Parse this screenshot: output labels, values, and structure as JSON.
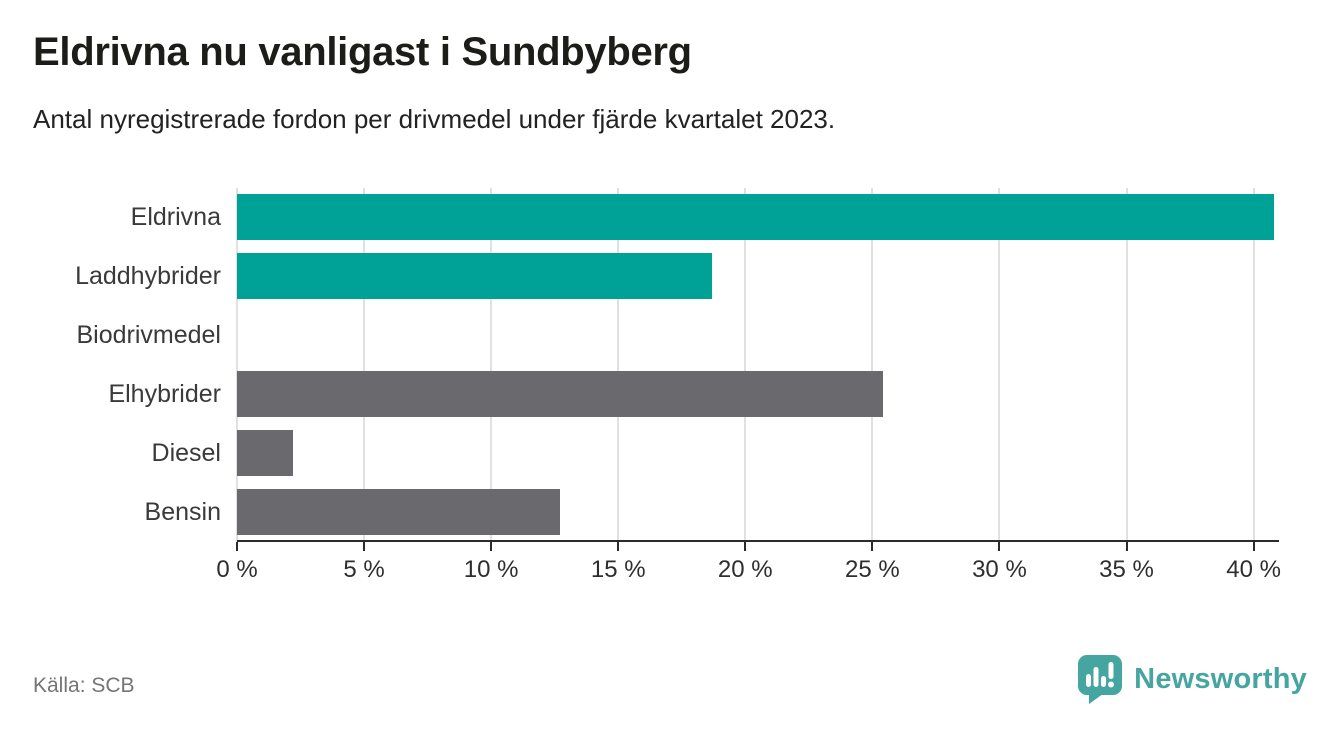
{
  "header": {
    "title": "Eldrivna nu vanligast i Sundbyberg",
    "subtitle": "Antal nyregistrerade fordon per drivmedel under fjärde kvartalet 2023."
  },
  "footer": {
    "source": "Källa: SCB",
    "brand": "Newsworthy"
  },
  "colors": {
    "accent_teal": "#00A196",
    "muted_gray": "#6A6A6E",
    "grid": "#E0E0E0",
    "axis": "#2B2B2B",
    "tick_text": "#2E2E2E",
    "label_text": "#3A3A3A",
    "source_text": "#757575",
    "brand_teal": "#45A5A0"
  },
  "chart_data": {
    "type": "bar",
    "orientation": "horizontal",
    "title": "Eldrivna nu vanligast i Sundbyberg",
    "subtitle": "Antal nyregistrerade fordon per drivmedel under fjärde kvartalet 2023.",
    "categories": [
      "Eldrivna",
      "Laddhybrider",
      "Biodrivmedel",
      "Elhybrider",
      "Diesel",
      "Bensin"
    ],
    "values": [
      40.8,
      18.7,
      0,
      25.4,
      2.2,
      12.7
    ],
    "bar_colors": [
      "#00A196",
      "#00A196",
      "#6A6A6E",
      "#6A6A6E",
      "#6A6A6E",
      "#6A6A6E"
    ],
    "xlabel": "",
    "ylabel": "",
    "xlim": [
      0,
      41
    ],
    "xticks": [
      0,
      5,
      10,
      15,
      20,
      25,
      30,
      35,
      40
    ],
    "tick_suffix": " %",
    "grid": true,
    "legend": false,
    "source": "Källa: SCB"
  }
}
